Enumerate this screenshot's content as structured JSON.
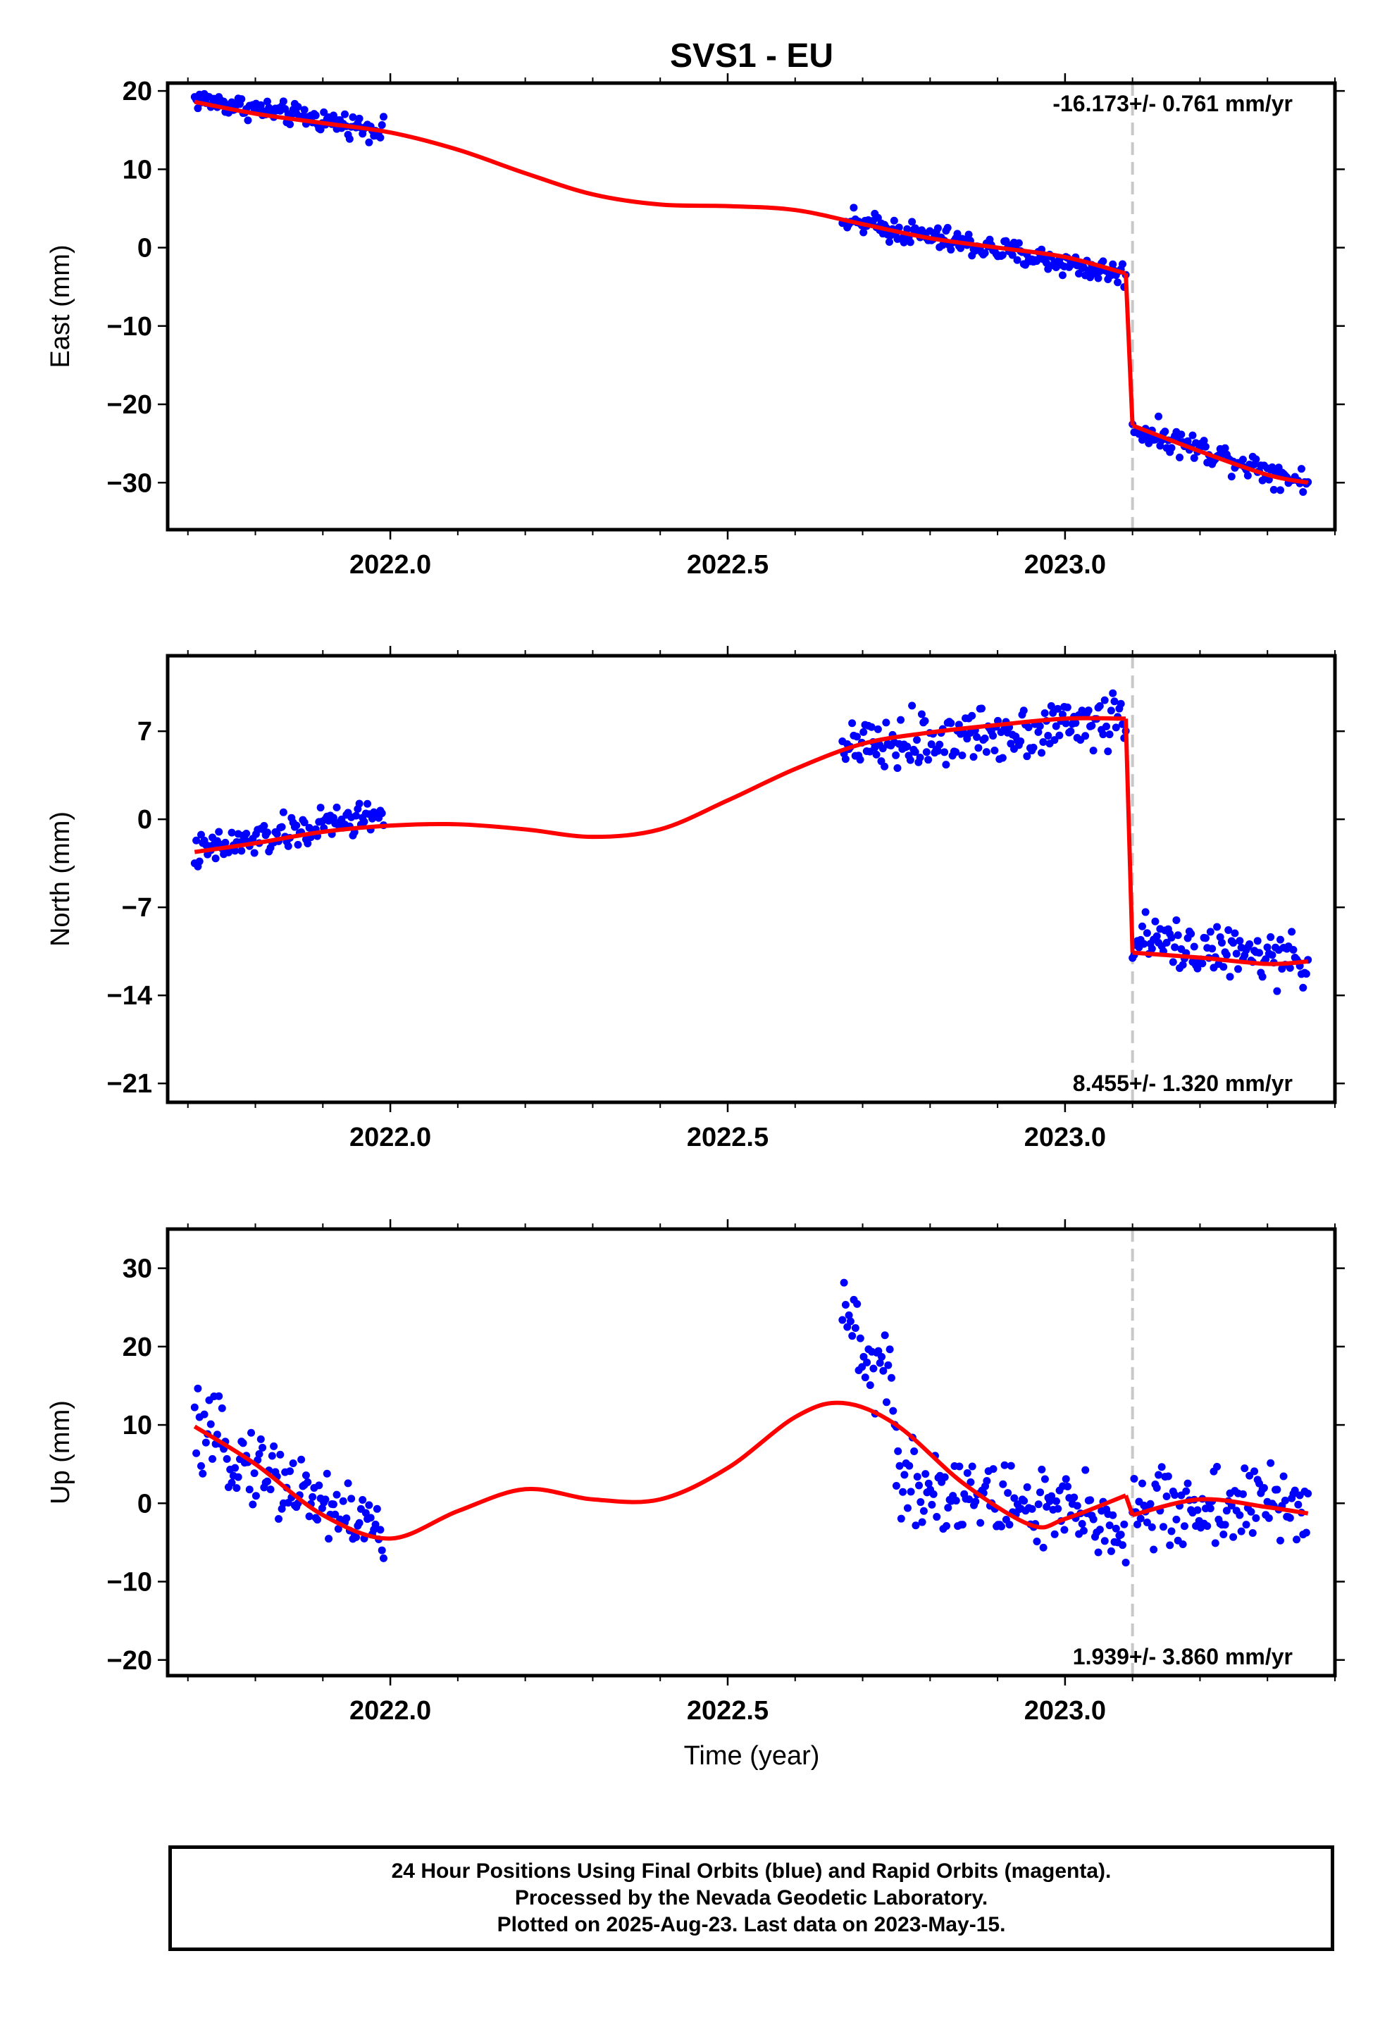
{
  "title": "SVS1 - EU",
  "xlabel": "Time (year)",
  "caption": [
    "24 Hour Positions Using Final Orbits (blue) and Rapid Orbits (magenta).",
    "Processed by the Nevada Geodetic Laboratory.",
    "Plotted on 2025-Aug-23. Last data on 2023-May-15."
  ],
  "colors": {
    "data": "#0000ff",
    "model": "#ff0000",
    "event": "#c8c8c8"
  },
  "chart_data": [
    {
      "type": "scatter",
      "name": "east",
      "ylabel": "East (mm)",
      "xlim": [
        2021.67,
        2023.4
      ],
      "ylim": [
        -36,
        21
      ],
      "xticks": [
        2022.0,
        2022.5,
        2023.0
      ],
      "xtick_labels": [
        "2022.0",
        "2022.5",
        "2023.0"
      ],
      "yticks": [
        20,
        10,
        0,
        -10,
        -20,
        -30
      ],
      "ytick_labels": [
        "20",
        "10",
        "0",
        "−10",
        "−20",
        "−30"
      ],
      "annotation": "-16.173+/- 0.761 mm/yr",
      "annotation_position": "top-right",
      "event_line": 2023.1,
      "data_segments": [
        {
          "x_start": 2021.71,
          "x_end": 2021.99,
          "y_start": 19,
          "y_end": 15,
          "noise": 1.3
        },
        {
          "x_start": 2022.67,
          "x_end": 2023.09,
          "y_start": 3.5,
          "y_end": -3.5,
          "noise": 1.5
        },
        {
          "x_start": 2023.1,
          "x_end": 2023.36,
          "y_start": -23,
          "y_end": -30,
          "noise": 1.6
        }
      ],
      "model_pre": [
        [
          2021.71,
          18.6
        ],
        [
          2021.8,
          17.1
        ],
        [
          2021.9,
          15.9
        ],
        [
          2022.0,
          14.7
        ],
        [
          2022.1,
          12.5
        ],
        [
          2022.2,
          9.5
        ],
        [
          2022.3,
          6.8
        ],
        [
          2022.4,
          5.5
        ],
        [
          2022.5,
          5.3
        ],
        [
          2022.6,
          4.8
        ],
        [
          2022.7,
          3.0
        ],
        [
          2022.8,
          1.2
        ],
        [
          2022.9,
          0.0
        ],
        [
          2023.0,
          -1.2
        ],
        [
          2023.09,
          -3.3
        ]
      ],
      "model_post": [
        [
          2023.1,
          -22.7
        ],
        [
          2023.2,
          -26.0
        ],
        [
          2023.3,
          -29.0
        ],
        [
          2023.36,
          -30.0
        ]
      ]
    },
    {
      "type": "scatter",
      "name": "north",
      "ylabel": "North (mm)",
      "xlim": [
        2021.67,
        2023.4
      ],
      "ylim": [
        -22.5,
        13
      ],
      "xticks": [
        2022.0,
        2022.5,
        2023.0
      ],
      "xtick_labels": [
        "2022.0",
        "2022.5",
        "2023.0"
      ],
      "yticks": [
        7,
        0,
        -7,
        -14,
        -21
      ],
      "ytick_labels": [
        "7",
        "0",
        "−7",
        "−14",
        "−21"
      ],
      "annotation": "8.455+/- 1.320 mm/yr",
      "annotation_position": "bottom-right",
      "event_line": 2023.1,
      "data_segments": [
        {
          "x_start": 2021.71,
          "x_end": 2021.99,
          "y_start": -2.7,
          "y_end": 0.5,
          "noise": 1.3
        },
        {
          "x_start": 2022.67,
          "x_end": 2023.09,
          "y_start": 5.5,
          "y_end": 8.0,
          "noise": 2.0
        },
        {
          "x_start": 2023.1,
          "x_end": 2023.36,
          "y_start": -9.5,
          "y_end": -11.5,
          "noise": 1.8
        }
      ],
      "model_pre": [
        [
          2021.71,
          -2.6
        ],
        [
          2021.8,
          -1.9
        ],
        [
          2021.9,
          -1.0
        ],
        [
          2022.0,
          -0.5
        ],
        [
          2022.1,
          -0.4
        ],
        [
          2022.2,
          -0.8
        ],
        [
          2022.3,
          -1.4
        ],
        [
          2022.4,
          -0.8
        ],
        [
          2022.5,
          1.5
        ],
        [
          2022.6,
          4.0
        ],
        [
          2022.7,
          6.0
        ],
        [
          2022.8,
          6.9
        ],
        [
          2022.9,
          7.5
        ],
        [
          2023.0,
          8.0
        ],
        [
          2023.09,
          8.0
        ]
      ],
      "model_post": [
        [
          2023.1,
          -10.6
        ],
        [
          2023.2,
          -11.0
        ],
        [
          2023.3,
          -11.5
        ],
        [
          2023.36,
          -11.3
        ]
      ]
    },
    {
      "type": "scatter",
      "name": "up",
      "ylabel": "Up (mm)",
      "xlim": [
        2021.67,
        2023.4
      ],
      "ylim": [
        -22,
        35
      ],
      "xticks": [
        2022.0,
        2022.5,
        2023.0
      ],
      "xtick_labels": [
        "2022.0",
        "2022.5",
        "2023.0"
      ],
      "yticks": [
        30,
        20,
        10,
        0,
        -10,
        -20
      ],
      "ytick_labels": [
        "30",
        "20",
        "10",
        "0",
        "−10",
        "−20"
      ],
      "annotation": "1.939+/- 3.860 mm/yr",
      "annotation_position": "bottom-right",
      "event_line": 2023.1,
      "data_segments": [
        {
          "x_start": 2021.71,
          "x_end": 2021.99,
          "y_start": 9,
          "y_end": -4,
          "noise": 4.5
        },
        {
          "x_start": 2022.67,
          "x_end": 2022.75,
          "y_start": 24,
          "y_end": 13,
          "noise": 5
        },
        {
          "x_start": 2022.75,
          "x_end": 2023.09,
          "y_start": 3,
          "y_end": -3,
          "noise": 5
        },
        {
          "x_start": 2023.1,
          "x_end": 2023.36,
          "y_start": -1,
          "y_end": 0,
          "noise": 5
        }
      ],
      "model_pre": [
        [
          2021.71,
          9.8
        ],
        [
          2021.8,
          5.0
        ],
        [
          2021.9,
          -1.5
        ],
        [
          2022.0,
          -4.5
        ],
        [
          2022.1,
          -1.0
        ],
        [
          2022.2,
          1.8
        ],
        [
          2022.3,
          0.5
        ],
        [
          2022.4,
          0.5
        ],
        [
          2022.5,
          4.5
        ],
        [
          2022.6,
          11.0
        ],
        [
          2022.67,
          12.8
        ],
        [
          2022.75,
          10.0
        ],
        [
          2022.85,
          2.5
        ],
        [
          2022.95,
          -2.8
        ],
        [
          2023.0,
          -2.0
        ],
        [
          2023.09,
          1.0
        ]
      ],
      "model_post": [
        [
          2023.1,
          -1.5
        ],
        [
          2023.2,
          0.5
        ],
        [
          2023.3,
          -0.5
        ],
        [
          2023.36,
          -1.3
        ]
      ]
    }
  ]
}
